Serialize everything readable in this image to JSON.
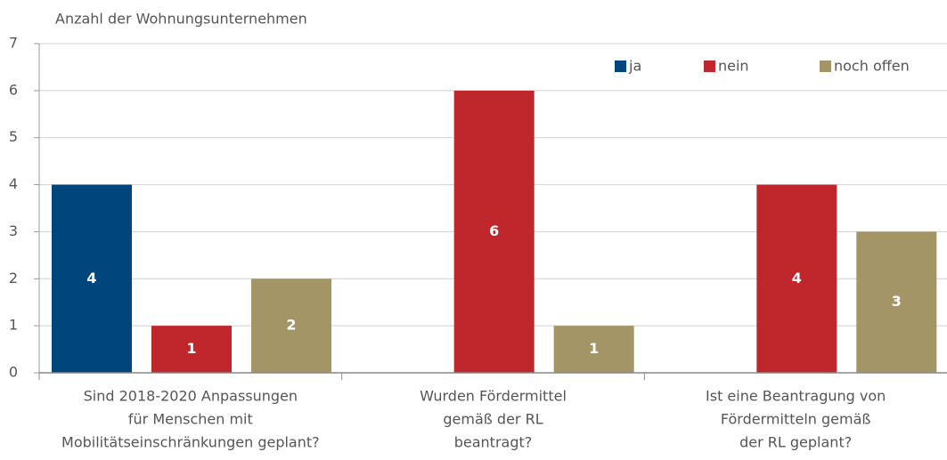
{
  "chart_data": {
    "type": "bar",
    "ylabel": "Anzahl der Wohnungsunternehmen",
    "categories": [
      [
        "Sind 2018-2020 Anpassungen",
        "für Menschen mit",
        "Mobilitätseinschränkungen geplant?"
      ],
      [
        "Wurden Fördermittel",
        "gemäß der RL",
        "beantragt?"
      ],
      [
        "Ist eine Beantragung von",
        "Fördermitteln gemäß",
        "der RL geplant?"
      ]
    ],
    "series": [
      {
        "name": "ja",
        "color": "#00457c",
        "values": [
          4,
          null,
          null
        ]
      },
      {
        "name": "nein",
        "color": "#c0272d",
        "values": [
          1,
          6,
          4
        ]
      },
      {
        "name": "noch offen",
        "color": "#a39566",
        "values": [
          2,
          1,
          3
        ]
      }
    ],
    "ylim": [
      0,
      7
    ],
    "yticks": [
      0,
      1,
      2,
      3,
      4,
      5,
      6,
      7
    ],
    "grid": true,
    "legend": "top-right"
  }
}
